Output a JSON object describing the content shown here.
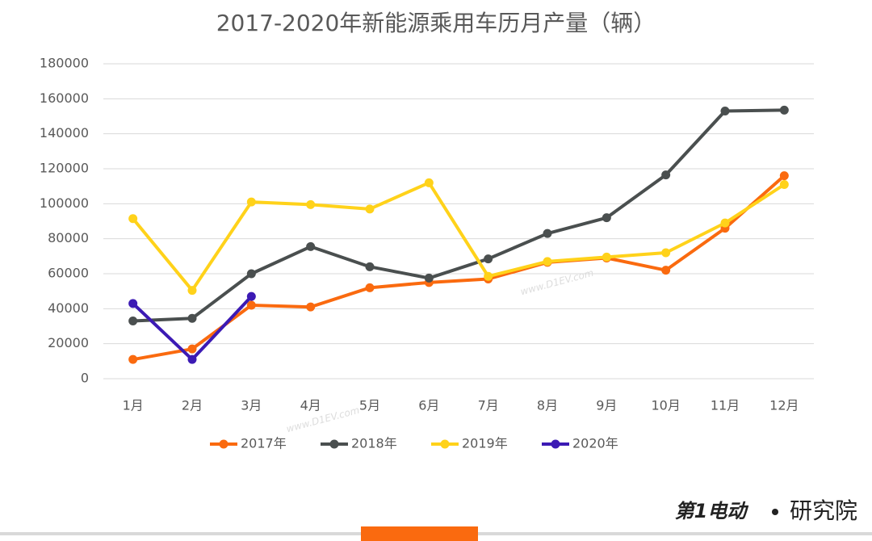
{
  "chart_data": {
    "type": "line",
    "title": "2017-2020年新能源乘用车历月产量（辆）",
    "categories": [
      "1月",
      "2月",
      "3月",
      "4月",
      "5月",
      "6月",
      "7月",
      "8月",
      "9月",
      "10月",
      "11月",
      "12月"
    ],
    "series": [
      {
        "name": "2017年",
        "color": "#fa6a0f",
        "values": [
          11000,
          17000,
          42000,
          41000,
          52000,
          55000,
          57000,
          66500,
          69000,
          62000,
          86000,
          116000
        ]
      },
      {
        "name": "2018年",
        "color": "#4a4f4f",
        "values": [
          33000,
          34500,
          60000,
          75500,
          64000,
          57500,
          68500,
          83000,
          92000,
          116500,
          153000,
          153500
        ]
      },
      {
        "name": "2019年",
        "color": "#ffd21a",
        "values": [
          91500,
          50500,
          101000,
          99500,
          97000,
          112000,
          58500,
          67000,
          69500,
          72000,
          89000,
          111000
        ]
      },
      {
        "name": "2020年",
        "color": "#3c1ab4",
        "values": [
          43000,
          11000,
          47000,
          null,
          null,
          null,
          null,
          null,
          null,
          null,
          null,
          null
        ]
      }
    ],
    "ylim": [
      0,
      180000
    ],
    "yticks": [
      0,
      20000,
      40000,
      60000,
      80000,
      100000,
      120000,
      140000,
      160000,
      180000
    ],
    "grid": true,
    "legend": "bottom",
    "watermark": "www.D1EV.com",
    "logo": {
      "brand": "第1电动",
      "name": "研究院"
    }
  }
}
